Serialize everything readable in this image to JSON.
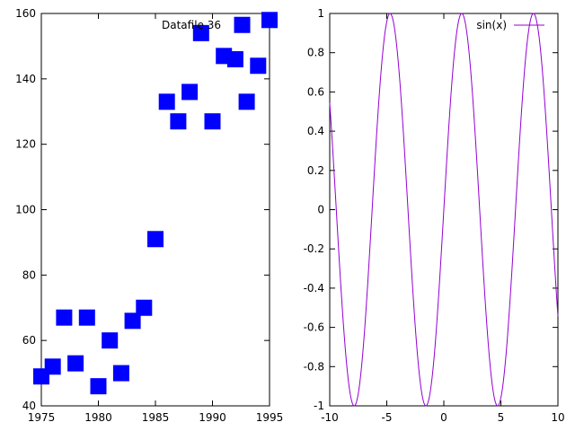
{
  "chart_data": [
    {
      "type": "scatter",
      "title": "",
      "xlabel": "",
      "ylabel": "",
      "xlim": [
        1975,
        1995
      ],
      "ylim": [
        40,
        160
      ],
      "xticks": [
        "1975",
        "1980",
        "1985",
        "1990",
        "1995"
      ],
      "yticks": [
        "40",
        "60",
        "80",
        "100",
        "120",
        "140",
        "160"
      ],
      "grid": false,
      "legend_position": "top-right",
      "series": [
        {
          "name": "Datafile 36",
          "color": "#0000ff",
          "marker": "filled-square",
          "points": [
            [
              1975,
              49
            ],
            [
              1976,
              52
            ],
            [
              1977,
              67
            ],
            [
              1978,
              53
            ],
            [
              1979,
              67
            ],
            [
              1980,
              46
            ],
            [
              1981,
              60
            ],
            [
              1982,
              50
            ],
            [
              1983,
              66
            ],
            [
              1984,
              70
            ],
            [
              1985,
              91
            ],
            [
              1986,
              133
            ],
            [
              1987,
              127
            ],
            [
              1988,
              136
            ],
            [
              1989,
              154
            ],
            [
              1990,
              127
            ],
            [
              1991,
              147
            ],
            [
              1992,
              146
            ],
            [
              1992.6,
              156.5
            ],
            [
              1993,
              133
            ],
            [
              1994,
              144
            ],
            [
              1995,
              158
            ]
          ]
        }
      ]
    },
    {
      "type": "line",
      "title": "",
      "xlabel": "",
      "ylabel": "",
      "xlim": [
        -10,
        10
      ],
      "ylim": [
        -1,
        1
      ],
      "xticks": [
        "-10",
        "-5",
        "0",
        "5",
        "10"
      ],
      "yticks": [
        "-1",
        "-0.8",
        "-0.6",
        "-0.4",
        "-0.2",
        "0",
        "0.2",
        "0.4",
        "0.6",
        "0.8",
        "1"
      ],
      "grid": false,
      "legend_position": "top-right",
      "series": [
        {
          "name": "sin(x)",
          "color": "#9400d3",
          "function": "sin(x)",
          "samples": 100
        }
      ]
    }
  ]
}
